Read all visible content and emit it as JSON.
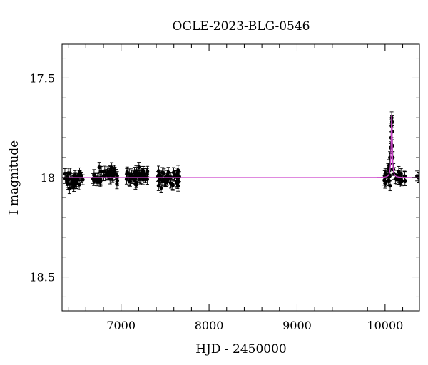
{
  "chart_data": {
    "type": "scatter",
    "title": "OGLE-2023-BLG-0546",
    "xlabel": "HJD - 2450000",
    "ylabel": "I magnitude",
    "xlim": [
      6330,
      10390
    ],
    "ylim": [
      18.67,
      17.33
    ],
    "y_axis_inverted": true,
    "x_ticks": [
      7000,
      8000,
      9000,
      10000
    ],
    "x_tick_labels": [
      "7000",
      "8000",
      "9000",
      "10000"
    ],
    "y_ticks": [
      17.5,
      18,
      18.5
    ],
    "y_tick_labels": [
      "17.5",
      "18",
      "18.5"
    ],
    "grid": false,
    "series": [
      {
        "type": "errorbar-scatter",
        "color": "#000000",
        "segments": [
          {
            "x_start": 6340,
            "x_end": 6570,
            "n": 40,
            "mean": 18.01,
            "scatter": 0.02,
            "error": 0.025
          },
          {
            "x_start": 6680,
            "x_end": 6960,
            "n": 40,
            "mean": 17.99,
            "scatter": 0.018,
            "error": 0.025
          },
          {
            "x_start": 7060,
            "x_end": 7300,
            "n": 45,
            "mean": 17.99,
            "scatter": 0.02,
            "error": 0.025
          },
          {
            "x_start": 7420,
            "x_end": 7670,
            "n": 45,
            "mean": 18.01,
            "scatter": 0.02,
            "error": 0.025
          },
          {
            "x_start": 9990,
            "x_end": 10060,
            "n": 15,
            "mean": 18.0,
            "scatter": 0.02,
            "error": 0.025
          },
          {
            "x_start": 10110,
            "x_end": 10230,
            "n": 20,
            "mean": 18.0,
            "scatter": 0.02,
            "error": 0.025
          },
          {
            "x_start": 10360,
            "x_end": 10385,
            "n": 4,
            "mean": 18.0,
            "scatter": 0.01,
            "error": 0.025
          }
        ],
        "peak_points": [
          {
            "x": 10045,
            "y": 17.94
          },
          {
            "x": 10055,
            "y": 17.9
          },
          {
            "x": 10062,
            "y": 17.85
          },
          {
            "x": 10068,
            "y": 17.8
          },
          {
            "x": 10072,
            "y": 17.74
          },
          {
            "x": 10075,
            "y": 17.7
          },
          {
            "x": 10078,
            "y": 17.72
          },
          {
            "x": 10081,
            "y": 17.77
          },
          {
            "x": 10084,
            "y": 17.84
          },
          {
            "x": 10088,
            "y": 17.9
          },
          {
            "x": 10095,
            "y": 17.96
          },
          {
            "x": 10102,
            "y": 17.98
          }
        ]
      },
      {
        "type": "model-line",
        "color": "#cc44cc",
        "baseline": 18.0,
        "peak_x": 10075,
        "peak_y": 17.68,
        "width": 9
      }
    ]
  }
}
